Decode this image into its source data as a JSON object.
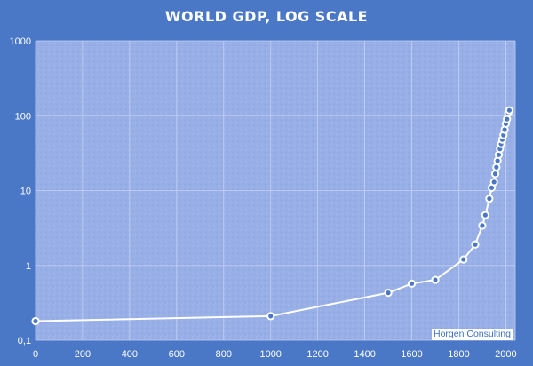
{
  "chart_data": {
    "type": "line",
    "title": "WORLD GDP, LOG SCALE",
    "xlabel": "",
    "ylabel": "",
    "xlim": [
      0,
      2040
    ],
    "ylim": [
      0.1,
      1000
    ],
    "yscale": "log",
    "x_ticks": [
      "0",
      "200",
      "400",
      "600",
      "800",
      "1000",
      "1200",
      "1400",
      "1600",
      "1800",
      "2000"
    ],
    "y_ticks": [
      "0,1",
      "1",
      "10",
      "100",
      "1000"
    ],
    "grid": true,
    "legend": "none",
    "series": [
      {
        "x": [
          0,
          1000,
          1500,
          1600,
          1700,
          1820,
          1870,
          1900,
          1913,
          1930,
          1940,
          1950,
          1955,
          1960,
          1965,
          1970,
          1975,
          1980,
          1985,
          1990,
          1995,
          2000,
          2005,
          2010,
          2015
        ],
        "y": [
          0.18,
          0.21,
          0.43,
          0.57,
          0.64,
          1.2,
          1.9,
          3.4,
          4.7,
          7.8,
          10.9,
          13.0,
          16.7,
          20.5,
          25.0,
          30.0,
          36.0,
          42.0,
          48.0,
          55.0,
          65.0,
          78.0,
          90.0,
          108.0,
          118.0
        ]
      }
    ],
    "colors": {
      "background": "#4a78c7",
      "plot_area": "#97aee6",
      "line": "#ffffff",
      "marker_fill": "#4a78c7"
    }
  },
  "watermark": "Horgen Consulting"
}
